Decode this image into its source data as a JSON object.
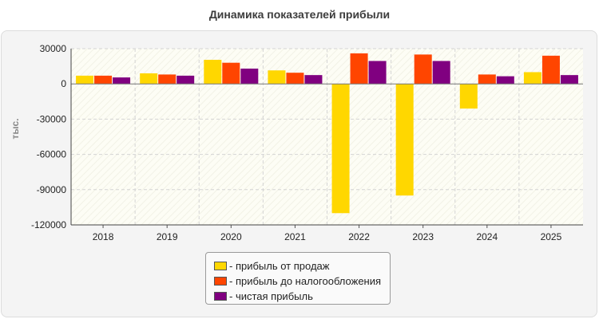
{
  "chart_data": {
    "type": "bar",
    "title": "Динамика показателей прибыли",
    "xlabel": "",
    "ylabel": "тыс.",
    "ylim": [
      -120000,
      30000
    ],
    "yticks": [
      30000,
      0,
      -30000,
      -60000,
      -90000,
      -120000
    ],
    "categories": [
      "2018",
      "2019",
      "2020",
      "2021",
      "2022",
      "2023",
      "2024",
      "2025"
    ],
    "series": [
      {
        "name": "- прибыль от продаж",
        "color": "#ffd700",
        "values": [
          7000,
          9000,
          20500,
          11500,
          -110000,
          -95000,
          -21000,
          10000
        ]
      },
      {
        "name": "- прибыль до налогообложения",
        "color": "#ff4500",
        "values": [
          7000,
          8000,
          18000,
          9500,
          26000,
          25000,
          8000,
          24000
        ]
      },
      {
        "name": "- чистая прибыль",
        "color": "#800080",
        "values": [
          5500,
          7000,
          13000,
          7500,
          19500,
          19500,
          6500,
          7500
        ]
      }
    ],
    "grid": true,
    "legend_position": "bottom"
  }
}
